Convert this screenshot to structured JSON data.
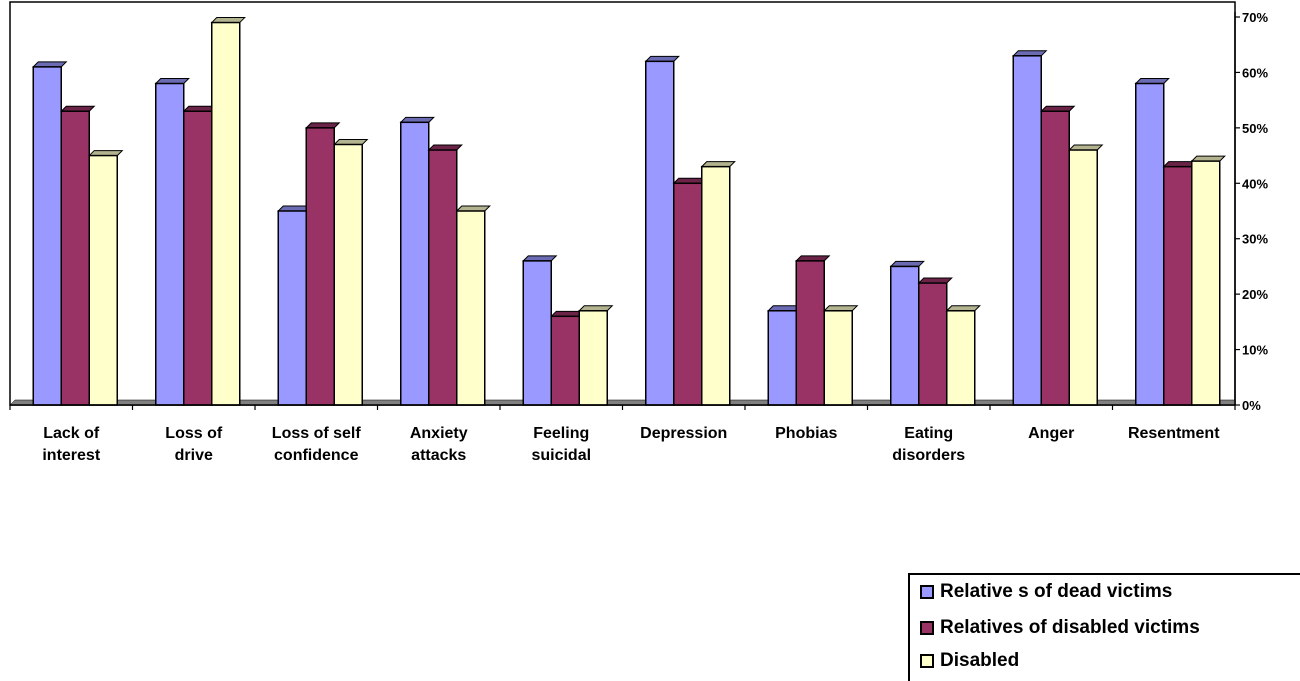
{
  "chart_data": {
    "type": "bar",
    "categories": [
      [
        "Lack of",
        "interest"
      ],
      [
        "Loss of",
        "drive"
      ],
      [
        "Loss of self",
        "confidence"
      ],
      [
        "Anxiety",
        "attacks"
      ],
      [
        "Feeling",
        "suicidal"
      ],
      [
        "Depression"
      ],
      [
        "Phobias"
      ],
      [
        "Eating",
        "disorders"
      ],
      [
        "Anger"
      ],
      [
        "Resentment"
      ]
    ],
    "series": [
      {
        "name": "Relative s of dead victims",
        "color": "#9999ff",
        "values": [
          61,
          58,
          35,
          51,
          26,
          62,
          17,
          25,
          63,
          58
        ]
      },
      {
        "name": "Relatives of disabled victims",
        "color": "#993366",
        "values": [
          53,
          53,
          50,
          46,
          16,
          40,
          26,
          22,
          53,
          43
        ]
      },
      {
        "name": "Disabled",
        "color": "#ffffcc",
        "values": [
          45,
          69,
          47,
          35,
          17,
          43,
          17,
          17,
          46,
          44
        ]
      }
    ],
    "y_ticks": [
      "0%",
      "10%",
      "20%",
      "30%",
      "40%",
      "50%",
      "60%",
      "70%"
    ],
    "ylim": [
      0,
      70
    ],
    "y_axis_side": "right",
    "grid": false,
    "legend_position": "bottom-right"
  }
}
